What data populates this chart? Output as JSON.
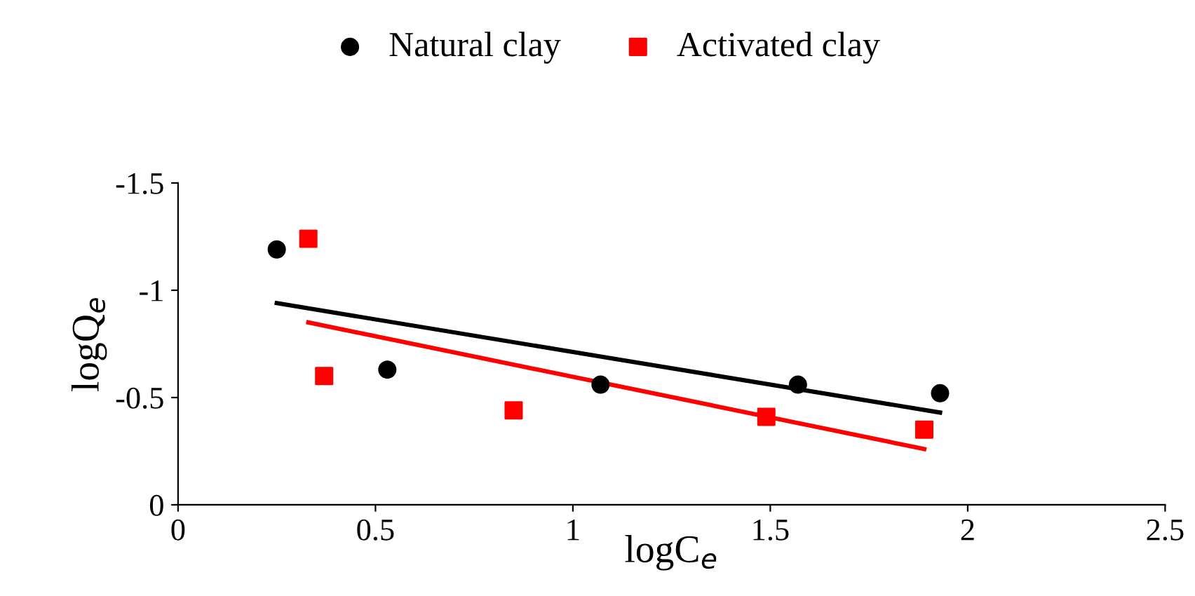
{
  "chart_data": {
    "type": "scatter",
    "xlabel": "logC$_{e}$",
    "ylabel": "logQ$_{e}$",
    "xlim": [
      0,
      2.5
    ],
    "xticks": [
      0,
      0.5,
      1,
      1.5,
      2,
      2.5
    ],
    "ylim": [
      0,
      -1.5
    ],
    "yticks": [
      0,
      -0.5,
      -1,
      -1.5
    ],
    "grid": false,
    "legend": "top",
    "series": [
      {
        "name": "Natural clay",
        "color": "#000000",
        "marker": "circle",
        "x": [
          0.25,
          0.53,
          1.07,
          1.57,
          1.93
        ],
        "values": [
          -1.19,
          -0.63,
          -0.56,
          -0.56,
          -0.52
        ]
      },
      {
        "name": "Activated clay",
        "color": "#ff0000",
        "marker": "square",
        "x": [
          0.33,
          0.37,
          0.85,
          1.49,
          1.89
        ],
        "values": [
          -1.24,
          -0.6,
          -0.44,
          -0.41,
          -0.35
        ]
      },
      {
        "type": "line",
        "marker": "none",
        "color": "#000000",
        "x": [
          0.25,
          1.93
        ],
        "values": [
          -0.94,
          -0.43
        ]
      },
      {
        "type": "line",
        "marker": "none",
        "color": "#ff0000",
        "x": [
          0.33,
          1.89
        ],
        "values": [
          -0.85,
          -0.26
        ]
      }
    ]
  }
}
